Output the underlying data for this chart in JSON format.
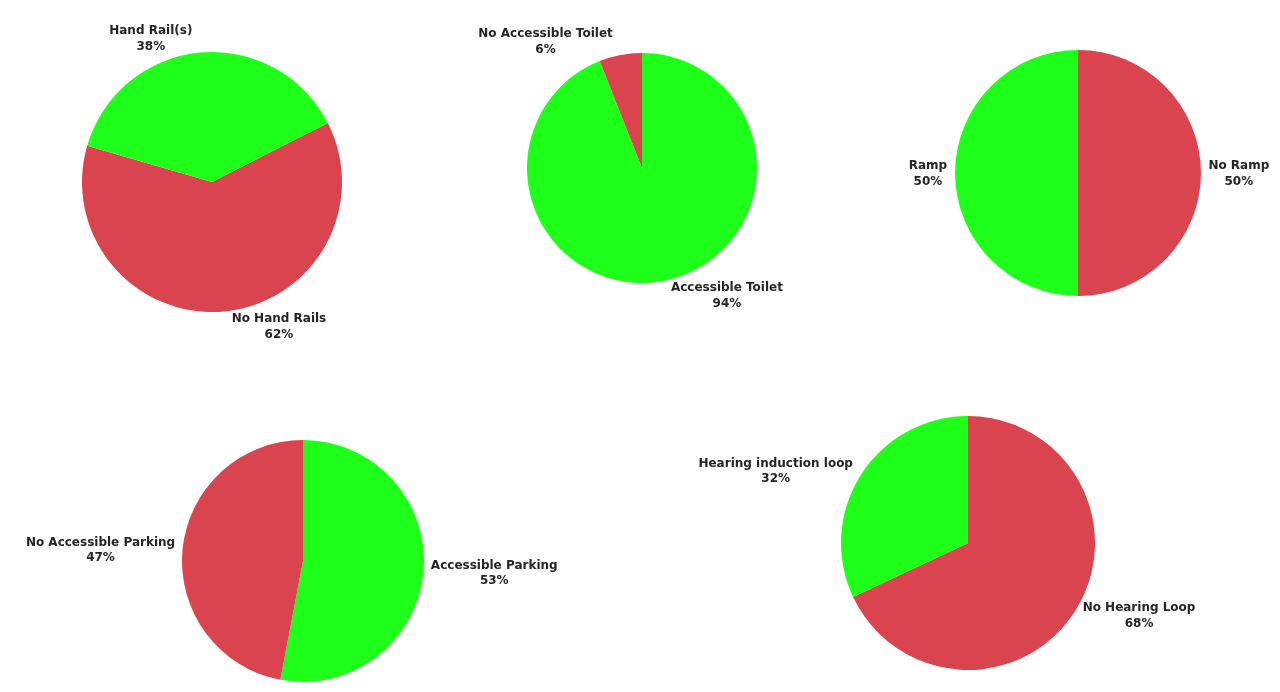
{
  "chart_data": [
    {
      "type": "pie",
      "categories": [
        "No Hand Rails",
        "Hand Rail(s)"
      ],
      "values": [
        62,
        38
      ],
      "colors": [
        "#d9444f",
        "#1eff1a"
      ],
      "value_labels": [
        "62%",
        "38%"
      ]
    },
    {
      "type": "pie",
      "categories": [
        "Accessible Toilet",
        "No Accessible Toilet"
      ],
      "values": [
        94,
        6
      ],
      "colors": [
        "#1eff1a",
        "#d9444f"
      ],
      "value_labels": [
        "94%",
        "6%"
      ]
    },
    {
      "type": "pie",
      "categories": [
        "No Ramp",
        "Ramp"
      ],
      "values": [
        50,
        50
      ],
      "colors": [
        "#d9444f",
        "#1eff1a"
      ],
      "value_labels": [
        "50%",
        "50%"
      ]
    },
    {
      "type": "pie",
      "categories": [
        "Accessible Parking",
        "No Accessible Parking"
      ],
      "values": [
        53,
        47
      ],
      "colors": [
        "#1eff1a",
        "#d9444f"
      ],
      "value_labels": [
        "53%",
        "47%"
      ]
    },
    {
      "type": "pie",
      "categories": [
        "No Hearing Loop",
        "Hearing induction loop"
      ],
      "values": [
        68,
        32
      ],
      "colors": [
        "#d9444f",
        "#1eff1a"
      ],
      "value_labels": [
        "68%",
        "32%"
      ]
    }
  ]
}
